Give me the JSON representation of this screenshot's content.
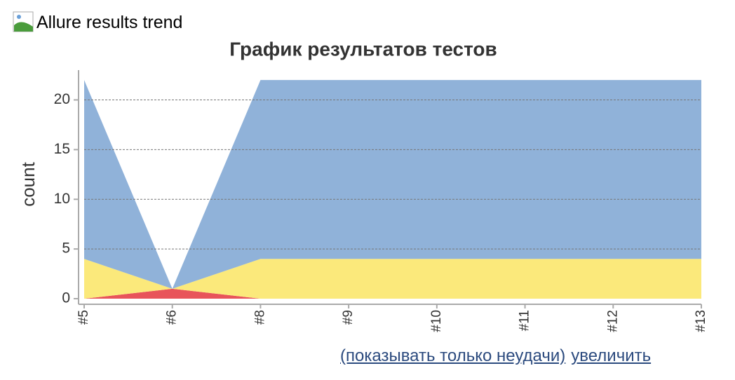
{
  "header": {
    "image_alt": "Allure results trend"
  },
  "chart_data": {
    "type": "area",
    "title": "График результатов тестов",
    "ylabel": "count",
    "categories": [
      "#5",
      "#6",
      "#8",
      "#9",
      "#10",
      "#11",
      "#12",
      "#13"
    ],
    "series": [
      {
        "color": "#e8545a",
        "values": [
          0,
          1,
          0,
          0,
          0,
          0,
          0,
          0
        ]
      },
      {
        "color": "#fbe97b",
        "values": [
          4,
          0,
          4,
          4,
          4,
          4,
          4,
          4
        ]
      },
      {
        "color": "#90b2d9",
        "values": [
          18,
          0,
          18,
          18,
          18,
          18,
          18,
          18
        ]
      }
    ],
    "stacked": true,
    "ylim": [
      0,
      23
    ],
    "yticks": [
      0,
      5,
      10,
      15,
      20
    ],
    "grid": true
  },
  "links": [
    "(показывать только неудачи)",
    "увеличить"
  ]
}
